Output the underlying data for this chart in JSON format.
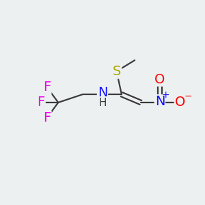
{
  "bg_color": "#edf0f0",
  "atom_colors": {
    "F": "#ee00ee",
    "N": "#1414ff",
    "O": "#ff0000",
    "S": "#aaaa00",
    "C": "#3a3a3a",
    "H": "#3a3a3a",
    "bond": "#3a3a3a"
  },
  "font_size_atom": 14,
  "font_size_sub": 11,
  "font_size_charge": 10
}
